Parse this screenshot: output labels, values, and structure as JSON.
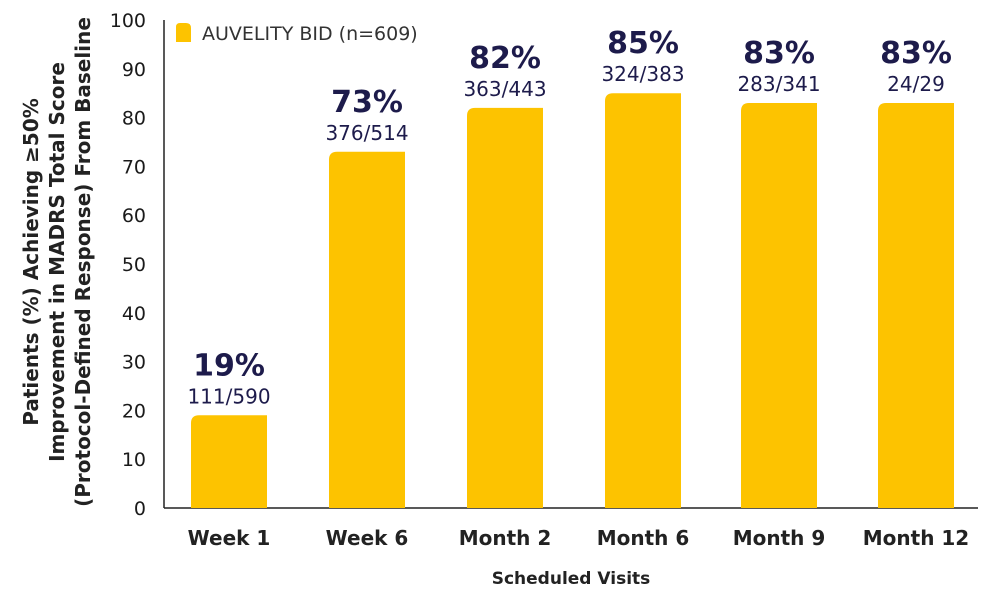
{
  "chart_data": {
    "type": "bar",
    "categories": [
      "Week 1",
      "Week 6",
      "Month 2",
      "Month 6",
      "Month 9",
      "Month 12"
    ],
    "series": [
      {
        "name": "AUVELITY BID (n=609)",
        "values": [
          19,
          73,
          82,
          85,
          83,
          83
        ],
        "labels": [
          "19%",
          "73%",
          "82%",
          "85%",
          "83%",
          "83%"
        ],
        "fractions": [
          "111/590",
          "376/514",
          "363/443",
          "324/383",
          "283/341",
          "24/29"
        ]
      }
    ],
    "title": "",
    "xlabel": "Scheduled Visits",
    "ylabel_lines": [
      "Patients (%) Achieving ≥50%",
      "Improvement in MADRS Total Score",
      "(Protocol-Defined Response) From Baseline"
    ],
    "yticks": [
      0,
      10,
      20,
      30,
      40,
      50,
      60,
      70,
      80,
      90,
      100
    ],
    "ylim": [
      0,
      100
    ],
    "grid": false,
    "legend_position": "top-left",
    "colors": {
      "bar": "#FDC300",
      "axis": "#222222",
      "label": "#1d1b4b"
    }
  }
}
